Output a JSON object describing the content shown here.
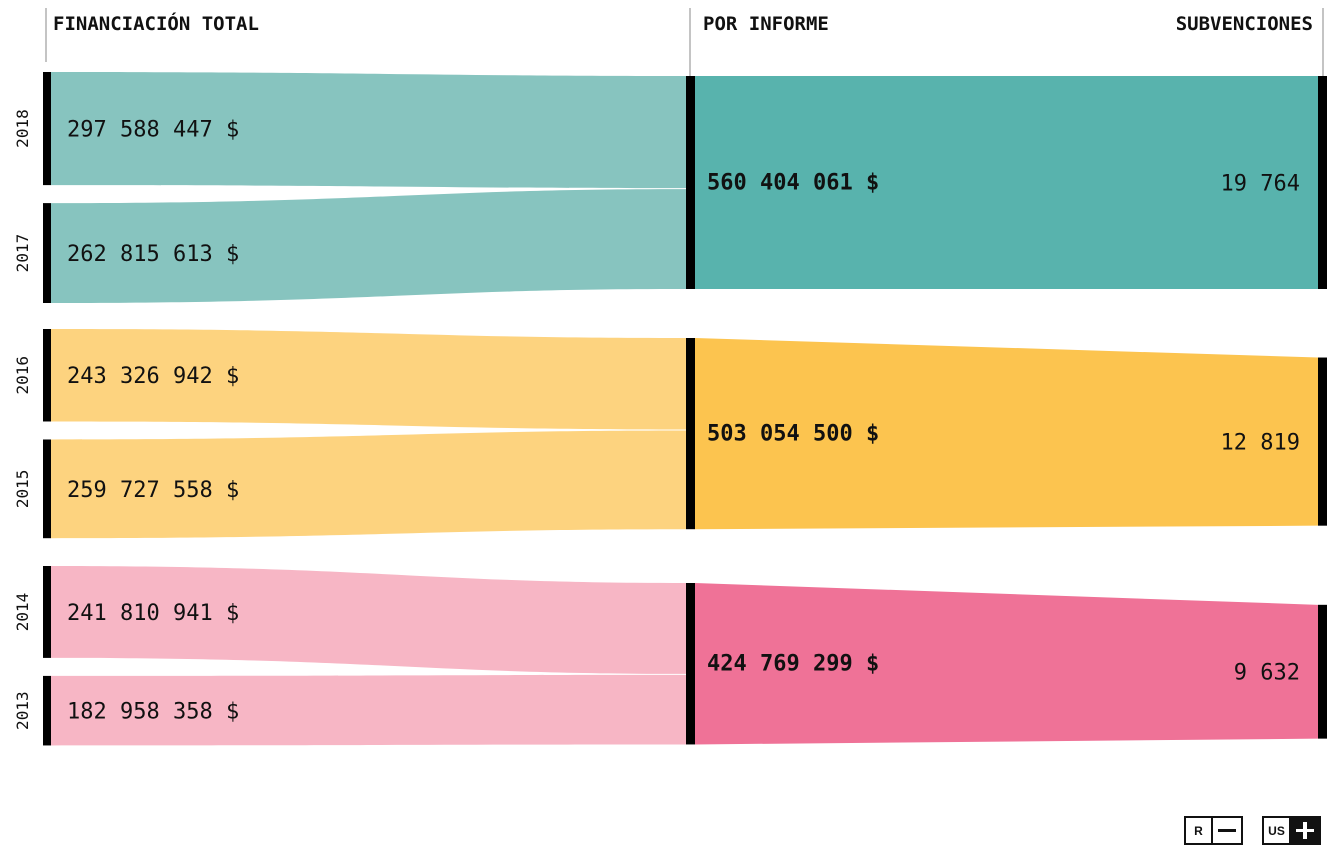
{
  "headers": {
    "total_funding": "FINANCIACIÓN TOTAL",
    "by_report": "POR INFORME",
    "grants": "SUBVENCIONES"
  },
  "colors": {
    "teal_light": "#87c4bf",
    "teal": "#58b3ad",
    "yellow_light": "#fdd37f",
    "yellow": "#fcc44f",
    "pink_light": "#f7b6c5",
    "pink": "#ef7297",
    "bar": "#000000"
  },
  "chart_data": {
    "type": "sankey",
    "years": [
      {
        "year": "2018",
        "amount": 297588447,
        "amount_label": "297 588 447 $",
        "report": 0
      },
      {
        "year": "2017",
        "amount": 262815613,
        "amount_label": "262 815 613 $",
        "report": 0
      },
      {
        "year": "2016",
        "amount": 243326942,
        "amount_label": "243 326 942 $",
        "report": 1
      },
      {
        "year": "2015",
        "amount": 259727558,
        "amount_label": "259 727 558 $",
        "report": 1
      },
      {
        "year": "2014",
        "amount": 241810941,
        "amount_label": "241 810 941 $",
        "report": 2
      },
      {
        "year": "2013",
        "amount": 182958358,
        "amount_label": "182 958 358 $",
        "report": 2
      }
    ],
    "reports": [
      {
        "total": 560404061,
        "total_label": "560 404 061 $",
        "grants": 19764,
        "grants_label": "19 764",
        "color": "teal"
      },
      {
        "total": 503054500,
        "total_label": "503 054 500 $",
        "grants": 12819,
        "grants_label": "12 819",
        "color": "yellow"
      },
      {
        "total": 424769299,
        "total_label": "424 769 299 $",
        "grants": 9632,
        "grants_label": "9 632",
        "color": "pink"
      }
    ]
  },
  "controls": {
    "r_label": "R",
    "us_label": "US"
  }
}
